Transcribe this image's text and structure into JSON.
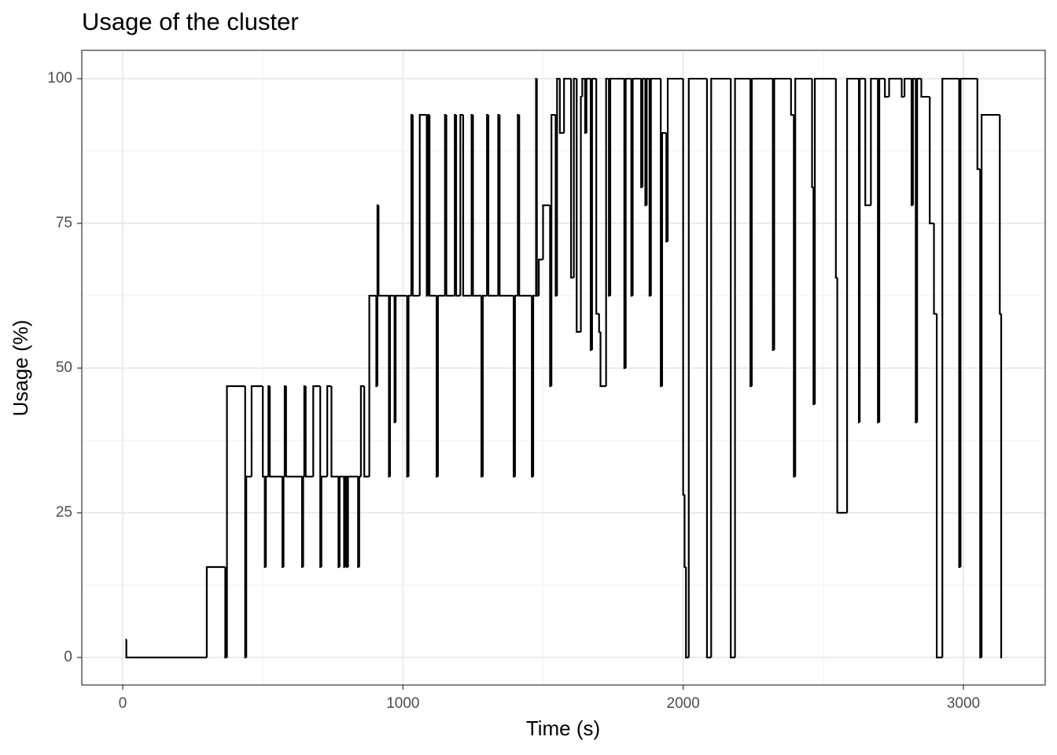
{
  "chart_data": {
    "type": "line",
    "step": true,
    "title": "Usage of the cluster",
    "x_label": "Time (s)",
    "y_label": "Usage (%)",
    "color": "#000000",
    "grid": true,
    "xlim": [
      -146,
      3292
    ],
    "ylim": [
      -4.76,
      104.9
    ],
    "xticks": [
      0,
      1000,
      2000,
      3000
    ],
    "yticks": [
      0,
      25,
      50,
      75,
      100
    ],
    "x": [
      10,
      13,
      300,
      366,
      372,
      437,
      441,
      460,
      500,
      507,
      511,
      520,
      525,
      570,
      574,
      578,
      583,
      640,
      644,
      648,
      653,
      680,
      705,
      709,
      730,
      745,
      770,
      774,
      790,
      794,
      800,
      804,
      840,
      844,
      850,
      862,
      880,
      905,
      909,
      913,
      950,
      954,
      970,
      974,
      1015,
      1020,
      1030,
      1035,
      1060,
      1085,
      1090,
      1095,
      1120,
      1125,
      1150,
      1155,
      1185,
      1190,
      1205,
      1215,
      1245,
      1250,
      1280,
      1285,
      1300,
      1305,
      1340,
      1345,
      1395,
      1400,
      1410,
      1415,
      1460,
      1465,
      1475,
      1478,
      1485,
      1500,
      1525,
      1530,
      1545,
      1550,
      1560,
      1575,
      1600,
      1610,
      1620,
      1635,
      1640,
      1650,
      1655,
      1670,
      1675,
      1690,
      1700,
      1705,
      1725,
      1735,
      1740,
      1790,
      1795,
      1815,
      1820,
      1850,
      1855,
      1865,
      1870,
      1880,
      1885,
      1920,
      1925,
      1940,
      1945,
      2000,
      2005,
      2010,
      2020,
      2085,
      2100,
      2170,
      2185,
      2240,
      2245,
      2320,
      2325,
      2385,
      2395,
      2400,
      2460,
      2465,
      2470,
      2545,
      2550,
      2585,
      2627,
      2630,
      2650,
      2670,
      2695,
      2700,
      2720,
      2735,
      2780,
      2790,
      2815,
      2820,
      2830,
      2835,
      2850,
      2880,
      2895,
      2905,
      2925,
      2985,
      2990,
      3050,
      3060,
      3065,
      3130,
      3135
    ],
    "y": [
      3.125,
      0,
      15.625,
      0,
      46.875,
      0,
      31.25,
      46.875,
      31.25,
      15.625,
      31.25,
      46.875,
      31.25,
      15.625,
      31.25,
      46.875,
      31.25,
      15.625,
      31.25,
      46.875,
      31.25,
      46.875,
      15.625,
      31.25,
      46.875,
      31.25,
      15.625,
      31.25,
      15.625,
      31.25,
      15.625,
      31.25,
      15.625,
      31.25,
      46.875,
      31.25,
      62.5,
      46.875,
      78.125,
      62.5,
      31.25,
      62.5,
      40.625,
      62.5,
      31.25,
      62.5,
      93.75,
      62.5,
      93.75,
      62.5,
      93.75,
      62.5,
      31.25,
      62.5,
      93.75,
      62.5,
      93.75,
      62.5,
      93.75,
      62.5,
      93.75,
      62.5,
      31.25,
      62.5,
      93.75,
      62.5,
      93.75,
      62.5,
      31.25,
      62.5,
      93.75,
      62.5,
      31.25,
      62.5,
      100,
      62.5,
      68.75,
      78.125,
      46.875,
      93.75,
      62.5,
      100,
      90.625,
      100,
      65.625,
      100,
      56.25,
      96.875,
      100,
      90.625,
      100,
      53.125,
      100,
      59.375,
      56.25,
      46.875,
      100,
      62.5,
      100,
      50,
      100,
      62.5,
      100,
      81.25,
      100,
      78.125,
      100,
      62.5,
      100,
      46.875,
      90.625,
      71.875,
      100,
      28.125,
      15.625,
      0,
      100,
      0,
      100,
      0,
      100,
      46.875,
      100,
      53.125,
      100,
      93.75,
      31.25,
      100,
      81.25,
      43.75,
      100,
      65.625,
      25,
      100,
      40.625,
      100,
      78.125,
      100,
      40.625,
      100,
      96.875,
      100,
      96.875,
      100,
      78.125,
      100,
      40.625,
      100,
      96.875,
      75,
      59.375,
      0,
      100,
      15.625,
      100,
      84.375,
      0,
      93.75,
      59.375,
      0
    ]
  }
}
